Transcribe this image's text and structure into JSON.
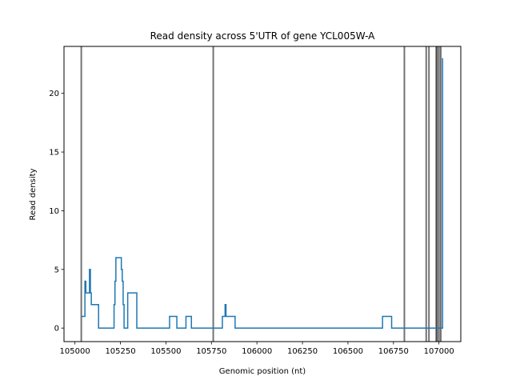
{
  "chart_data": {
    "type": "line",
    "title": "Read density across 5'UTR of gene YCL005W-A",
    "xlabel": "Genomic position (nt)",
    "ylabel": "Read density",
    "xlim": [
      104940,
      107120
    ],
    "ylim": [
      -1.15,
      24.0
    ],
    "x_ticks": [
      105000,
      105250,
      105500,
      105750,
      106000,
      106250,
      106500,
      106750,
      107000
    ],
    "y_ticks": [
      0,
      5,
      10,
      15,
      20
    ],
    "grid": false,
    "legend": "none",
    "colors": {
      "series": "#1f77b4",
      "vlines": "#000000",
      "axes": "#000000"
    },
    "series": [
      {
        "step": "post",
        "x": [
          105035,
          105055,
          105060,
          105065,
          105080,
          105085,
          105090,
          105095,
          105130,
          105210,
          105215,
          105220,
          105225,
          105230,
          105255,
          105260,
          105265,
          105270,
          105290,
          105340,
          105380,
          105430,
          105520,
          105560,
          105610,
          105640,
          105755,
          105810,
          105825,
          105830,
          105880,
          106100,
          106400,
          106690,
          106710,
          106740,
          106810,
          106930,
          106970,
          107000,
          107020
        ],
        "y": [
          1,
          4,
          3,
          3,
          5,
          3,
          2,
          2,
          0,
          0,
          2,
          4,
          6,
          6,
          5,
          4,
          2,
          0,
          3,
          0,
          0,
          0,
          1,
          0,
          1,
          0,
          0,
          1,
          2,
          1,
          0,
          0,
          0,
          1,
          1,
          0,
          0,
          0,
          0,
          0,
          23
        ]
      }
    ],
    "vlines": [
      105035,
      105760,
      106810,
      106930,
      106945,
      106985,
      106990,
      107000,
      107010
    ]
  }
}
